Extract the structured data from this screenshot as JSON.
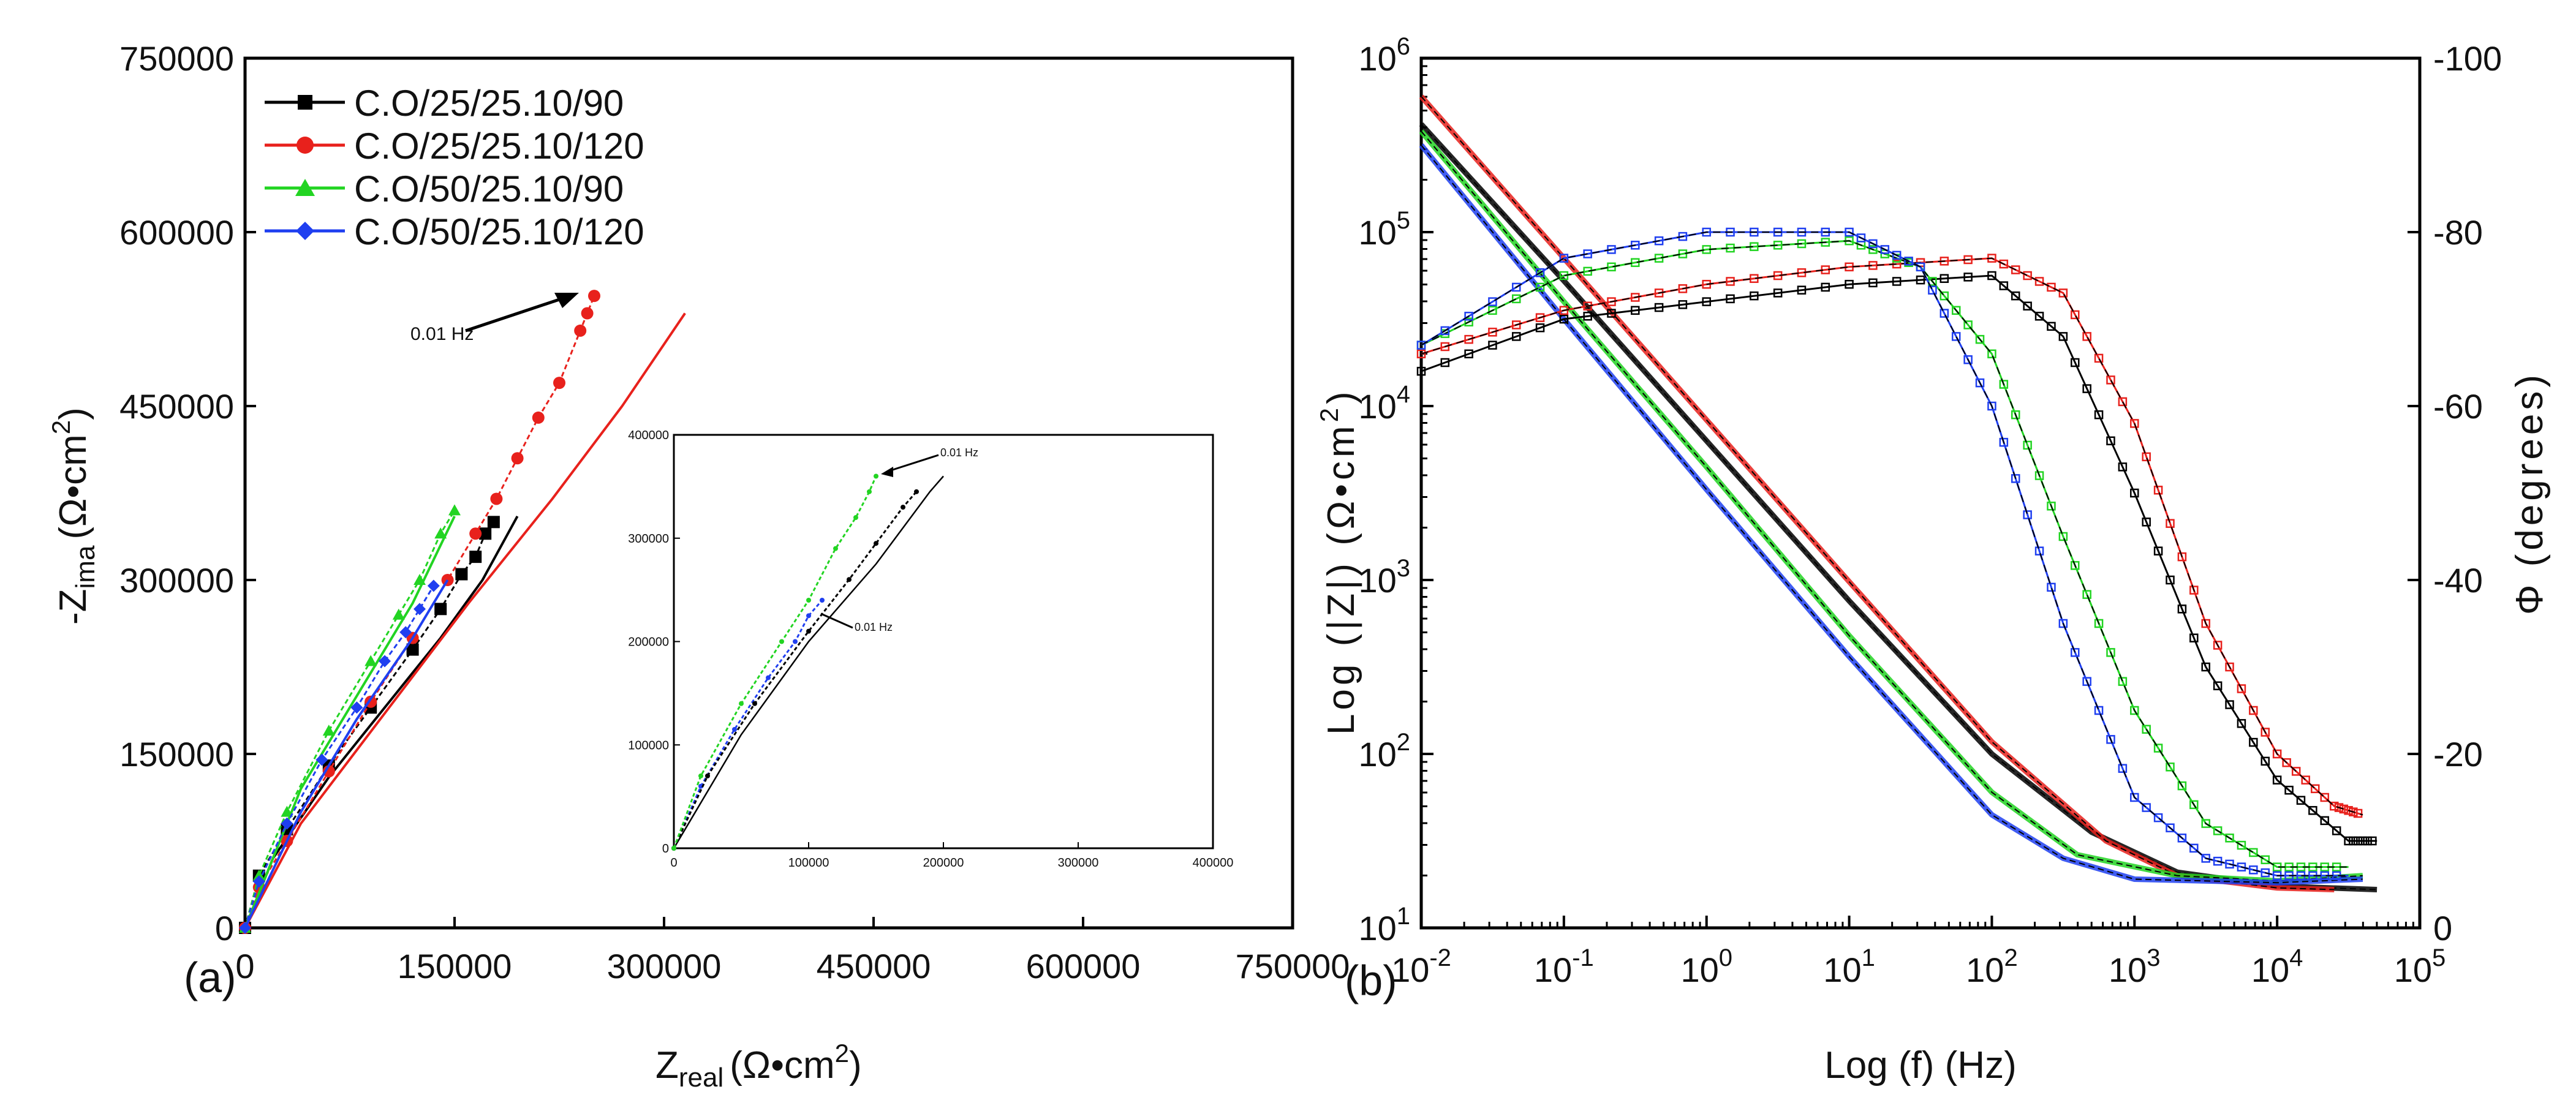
{
  "colors": {
    "black": "#000000",
    "red": "#e8211c",
    "green": "#22d422",
    "blue": "#1f3ff0",
    "axis": "#000000",
    "background": "#ffffff"
  },
  "chart_data": [
    {
      "id": "a",
      "type": "scatter",
      "panel_label": "(a)",
      "xlabel_main": "Z",
      "xlabel_sub": "real",
      "xlabel_unit": "(Ω•cm",
      "xlabel_sup": "2",
      "xlabel_close": ")",
      "ylabel_main": "-Z",
      "ylabel_sub": "ima",
      "ylabel_unit": "(Ω•cm",
      "ylabel_sup": "2",
      "ylabel_close": ")",
      "xlim": [
        0,
        750000
      ],
      "ylim": [
        0,
        750000
      ],
      "xticks": [
        "0",
        "150000",
        "300000",
        "450000",
        "600000",
        "750000"
      ],
      "yticks": [
        "0",
        "150000",
        "300000",
        "450000",
        "600000",
        "750000"
      ],
      "legend_position": "top-left",
      "annotation": "0.01 Hz",
      "series": [
        {
          "name": "C.O/25/25.10/90",
          "color": "#000000",
          "marker": "square",
          "points": [
            [
              0,
              0
            ],
            [
              10000,
              45000
            ],
            [
              30000,
              85000
            ],
            [
              60000,
              140000
            ],
            [
              90000,
              190000
            ],
            [
              120000,
              240000
            ],
            [
              140000,
              275000
            ],
            [
              155000,
              305000
            ],
            [
              165000,
              320000
            ],
            [
              172000,
              340000
            ],
            [
              178000,
              350000
            ]
          ],
          "fit": [
            [
              0,
              0
            ],
            [
              20000,
              60000
            ],
            [
              60000,
              130000
            ],
            [
              100000,
              190000
            ],
            [
              140000,
              250000
            ],
            [
              170000,
              300000
            ],
            [
              195000,
              355000
            ]
          ]
        },
        {
          "name": "C.O/25/25.10/120",
          "color": "#e8211c",
          "marker": "circle",
          "points": [
            [
              0,
              0
            ],
            [
              10000,
              35000
            ],
            [
              30000,
              75000
            ],
            [
              60000,
              135000
            ],
            [
              90000,
              195000
            ],
            [
              120000,
              250000
            ],
            [
              145000,
              300000
            ],
            [
              165000,
              340000
            ],
            [
              180000,
              370000
            ],
            [
              195000,
              405000
            ],
            [
              210000,
              440000
            ],
            [
              225000,
              470000
            ],
            [
              240000,
              515000
            ],
            [
              245000,
              530000
            ],
            [
              250000,
              545000
            ]
          ],
          "fit": [
            [
              0,
              0
            ],
            [
              40000,
              90000
            ],
            [
              100000,
              185000
            ],
            [
              160000,
              280000
            ],
            [
              220000,
              370000
            ],
            [
              270000,
              450000
            ],
            [
              315000,
              530000
            ]
          ]
        },
        {
          "name": "C.O/50/25.10/90",
          "color": "#22d422",
          "marker": "triangle",
          "points": [
            [
              0,
              0
            ],
            [
              10000,
              45000
            ],
            [
              30000,
              100000
            ],
            [
              60000,
              170000
            ],
            [
              90000,
              230000
            ],
            [
              110000,
              270000
            ],
            [
              125000,
              300000
            ],
            [
              140000,
              340000
            ],
            [
              150000,
              360000
            ]
          ],
          "fit": [
            [
              0,
              0
            ],
            [
              40000,
              120000
            ],
            [
              80000,
              200000
            ],
            [
              120000,
              280000
            ],
            [
              150000,
              355000
            ]
          ]
        },
        {
          "name": "C.O/50/25.10/120",
          "color": "#1f3ff0",
          "marker": "diamond",
          "points": [
            [
              0,
              0
            ],
            [
              10000,
              40000
            ],
            [
              30000,
              90000
            ],
            [
              55000,
              145000
            ],
            [
              80000,
              190000
            ],
            [
              100000,
              230000
            ],
            [
              115000,
              255000
            ],
            [
              125000,
              275000
            ],
            [
              135000,
              295000
            ]
          ],
          "fit": [
            [
              0,
              0
            ],
            [
              40000,
              100000
            ],
            [
              80000,
              180000
            ],
            [
              120000,
              250000
            ],
            [
              145000,
              300000
            ]
          ]
        }
      ],
      "inset": {
        "xlim": [
          0,
          400000
        ],
        "ylim": [
          0,
          400000
        ],
        "xticks": [
          "0",
          "100000",
          "200000",
          "300000",
          "400000"
        ],
        "yticks": [
          "0",
          "100000",
          "200000",
          "300000",
          "400000"
        ],
        "annotation_top": "0.01 Hz",
        "annotation_mid": "0.01 Hz",
        "series": [
          {
            "name": "C.O/50/25.10/120",
            "color": "#1f3ff0",
            "points": [
              [
                0,
                0
              ],
              [
                20000,
                60000
              ],
              [
                45000,
                115000
              ],
              [
                70000,
                165000
              ],
              [
                90000,
                200000
              ],
              [
                100000,
                225000
              ],
              [
                110000,
                240000
              ]
            ]
          },
          {
            "name": "C.O/25/25.10/90",
            "color": "#000000",
            "points": [
              [
                0,
                0
              ],
              [
                25000,
                70000
              ],
              [
                60000,
                140000
              ],
              [
                100000,
                210000
              ],
              [
                130000,
                260000
              ],
              [
                150000,
                295000
              ],
              [
                170000,
                330000
              ],
              [
                180000,
                345000
              ]
            ]
          },
          {
            "name": "C.O/50/25.10/90",
            "color": "#22d422",
            "points": [
              [
                0,
                0
              ],
              [
                20000,
                70000
              ],
              [
                50000,
                140000
              ],
              [
                80000,
                200000
              ],
              [
                100000,
                240000
              ],
              [
                120000,
                290000
              ],
              [
                135000,
                320000
              ],
              [
                145000,
                345000
              ],
              [
                150000,
                360000
              ]
            ]
          }
        ],
        "fits": [
          {
            "color": "#000000",
            "points": [
              [
                0,
                0
              ],
              [
                50000,
                110000
              ],
              [
                100000,
                200000
              ],
              [
                150000,
                275000
              ],
              [
                190000,
                345000
              ],
              [
                200000,
                360000
              ]
            ]
          }
        ]
      }
    },
    {
      "id": "b",
      "type": "line",
      "panel_label": "(b)",
      "xlabel": "Log (f) (Hz)",
      "ylabel_left_main": "Log (|Z|) (Ω•cm",
      "ylabel_left_sup": "2",
      "ylabel_left_close": ")",
      "ylabel_right": "Φ (degrees)",
      "x_scale": "log",
      "xlim_exp": [
        -2,
        5
      ],
      "ylim_left_exp": [
        1,
        6
      ],
      "ylim_right": [
        0,
        -100
      ],
      "xtick_base": "10",
      "xtick_exps": [
        "-2",
        "-1",
        "0",
        "1",
        "2",
        "3",
        "4",
        "5"
      ],
      "ytick_base": "10",
      "ytick_exps": [
        "1",
        "2",
        "3",
        "4",
        "5",
        "6"
      ],
      "yticks_right": [
        "0",
        "-20",
        "-40",
        "-60",
        "-80",
        "-100"
      ],
      "impedance_series": [
        {
          "name": "C.O/25/25.10/90",
          "color": "#000000",
          "points": [
            [
              -2,
              5.62
            ],
            [
              -1,
              4.72
            ],
            [
              0,
              3.8
            ],
            [
              1,
              2.88
            ],
            [
              2,
              2.0
            ],
            [
              2.7,
              1.55
            ],
            [
              3.3,
              1.32
            ],
            [
              4,
              1.24
            ],
            [
              4.7,
              1.22
            ]
          ]
        },
        {
          "name": "C.O/25/25.10/120",
          "color": "#e8211c",
          "points": [
            [
              -2,
              5.78
            ],
            [
              -1,
              4.85
            ],
            [
              0,
              3.92
            ],
            [
              1,
              2.99
            ],
            [
              2,
              2.07
            ],
            [
              2.8,
              1.5
            ],
            [
              3.3,
              1.3
            ],
            [
              4,
              1.23
            ],
            [
              4.4,
              1.22
            ]
          ]
        },
        {
          "name": "C.O/50/25.10/90",
          "color": "#22d422",
          "points": [
            [
              -2,
              5.58
            ],
            [
              -1,
              4.6
            ],
            [
              0,
              3.65
            ],
            [
              1,
              2.68
            ],
            [
              2,
              1.78
            ],
            [
              2.6,
              1.42
            ],
            [
              3.3,
              1.3
            ],
            [
              4,
              1.27
            ],
            [
              4.6,
              1.3
            ]
          ]
        },
        {
          "name": "C.O/50/25.10/120",
          "color": "#1f3ff0",
          "points": [
            [
              -2,
              5.5
            ],
            [
              -1,
              4.5
            ],
            [
              0,
              3.52
            ],
            [
              1,
              2.56
            ],
            [
              2,
              1.65
            ],
            [
              2.5,
              1.4
            ],
            [
              3,
              1.28
            ],
            [
              4,
              1.26
            ],
            [
              4.6,
              1.28
            ]
          ]
        }
      ],
      "phase_series": [
        {
          "name": "C.O/25/25.10/90",
          "color": "#000000",
          "points": [
            [
              -2,
              -64
            ],
            [
              -1,
              -70
            ],
            [
              0,
              -72
            ],
            [
              1,
              -74
            ],
            [
              2,
              -75
            ],
            [
              2.5,
              -68
            ],
            [
              3,
              -50
            ],
            [
              3.5,
              -30
            ],
            [
              4,
              -17
            ],
            [
              4.5,
              -10
            ],
            [
              4.7,
              -10
            ]
          ]
        },
        {
          "name": "C.O/25/25.10/120",
          "color": "#e8211c",
          "points": [
            [
              -2,
              -66
            ],
            [
              -1,
              -71
            ],
            [
              0,
              -74
            ],
            [
              1,
              -76
            ],
            [
              2,
              -77
            ],
            [
              2.5,
              -73
            ],
            [
              3,
              -58
            ],
            [
              3.5,
              -35
            ],
            [
              4,
              -20
            ],
            [
              4.4,
              -14
            ],
            [
              4.6,
              -13
            ]
          ]
        },
        {
          "name": "C.O/50/25.10/90",
          "color": "#22d422",
          "points": [
            [
              -2,
              -67
            ],
            [
              -1,
              -75
            ],
            [
              0,
              -78
            ],
            [
              1,
              -79
            ],
            [
              1.5,
              -76
            ],
            [
              2,
              -66
            ],
            [
              2.5,
              -45
            ],
            [
              3,
              -25
            ],
            [
              3.5,
              -12
            ],
            [
              4,
              -7
            ],
            [
              4.5,
              -7
            ]
          ]
        },
        {
          "name": "C.O/50/25.10/120",
          "color": "#1f3ff0",
          "points": [
            [
              -2,
              -67
            ],
            [
              -1,
              -77
            ],
            [
              0,
              -80
            ],
            [
              1,
              -80
            ],
            [
              1.5,
              -76
            ],
            [
              2,
              -60
            ],
            [
              2.5,
              -35
            ],
            [
              3,
              -15
            ],
            [
              3.5,
              -8
            ],
            [
              4,
              -6
            ],
            [
              4.5,
              -6
            ]
          ]
        }
      ]
    }
  ]
}
